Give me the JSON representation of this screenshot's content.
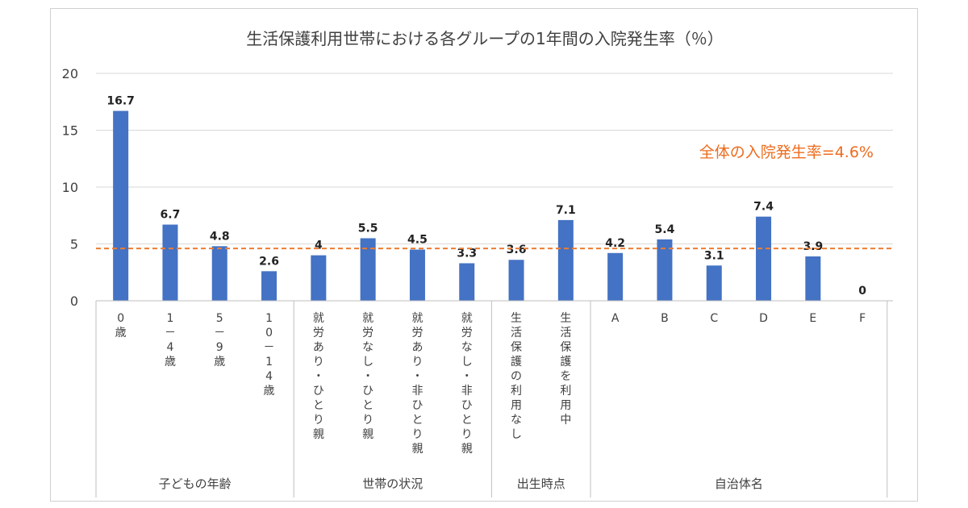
{
  "chart_data": {
    "type": "bar",
    "title": "生活保護利用世帯における各グループの1年間の入院発生率（％）",
    "ylim": [
      0,
      20
    ],
    "yticks": [
      0,
      5,
      10,
      15,
      20
    ],
    "grid": true,
    "bar_color": "#4472c4",
    "reference_line": {
      "value": 4.6,
      "label": "全体の入院発生率=4.6%",
      "color": "#ed7d31"
    },
    "categories": [
      "0歳",
      "1－4歳",
      "5－9歳",
      "10－14歳",
      "就労あり・ひとり親",
      "就労なし・ひとり親",
      "就労あり・非ひとり親",
      "就労なし・非ひとり親",
      "生活保護の利用なし",
      "生活保護を利用中",
      "A",
      "B",
      "C",
      "D",
      "E",
      "F"
    ],
    "values": [
      16.7,
      6.7,
      4.8,
      2.6,
      4,
      5.5,
      4.5,
      3.3,
      3.6,
      7.1,
      4.2,
      5.4,
      3.1,
      7.4,
      3.9,
      0
    ],
    "groups": [
      {
        "label": "子どもの年齢",
        "count": 4
      },
      {
        "label": "世帯の状況",
        "count": 4
      },
      {
        "label": "出生時点",
        "count": 2
      },
      {
        "label": "自治体名",
        "count": 6
      }
    ]
  }
}
